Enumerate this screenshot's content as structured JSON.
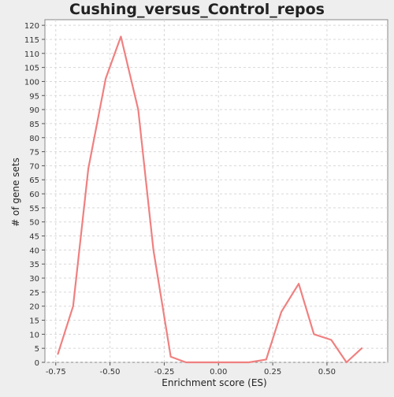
{
  "chart_data": {
    "type": "line",
    "title": "Cushing_versus_Control_repos",
    "xlabel": "Enrichment score (ES)",
    "ylabel": "# of gene sets",
    "xlim": [
      -0.8,
      0.78
    ],
    "ylim": [
      0,
      122
    ],
    "x_ticks": [
      -0.75,
      -0.5,
      -0.25,
      0.0,
      0.25,
      0.5
    ],
    "x_tick_labels": [
      "-0.75",
      "-0.50",
      "-0.25",
      "0.00",
      "0.25",
      "0.50"
    ],
    "y_ticks": [
      0,
      5,
      10,
      15,
      20,
      25,
      30,
      35,
      40,
      45,
      50,
      55,
      60,
      65,
      70,
      75,
      80,
      85,
      90,
      95,
      100,
      105,
      110,
      115,
      120
    ],
    "grid": true,
    "legend": "none",
    "series": [
      {
        "color": "#f08080",
        "x": [
          -0.74,
          -0.67,
          -0.6,
          -0.52,
          -0.45,
          -0.37,
          -0.3,
          -0.22,
          -0.15,
          -0.07,
          0.0,
          0.07,
          0.14,
          0.22,
          0.29,
          0.37,
          0.44,
          0.52,
          0.59,
          0.66
        ],
        "y": [
          3,
          20,
          69,
          101,
          116,
          90,
          40,
          2,
          0,
          0,
          0,
          0,
          0,
          1,
          18,
          28,
          10,
          8,
          0,
          5
        ]
      }
    ]
  }
}
